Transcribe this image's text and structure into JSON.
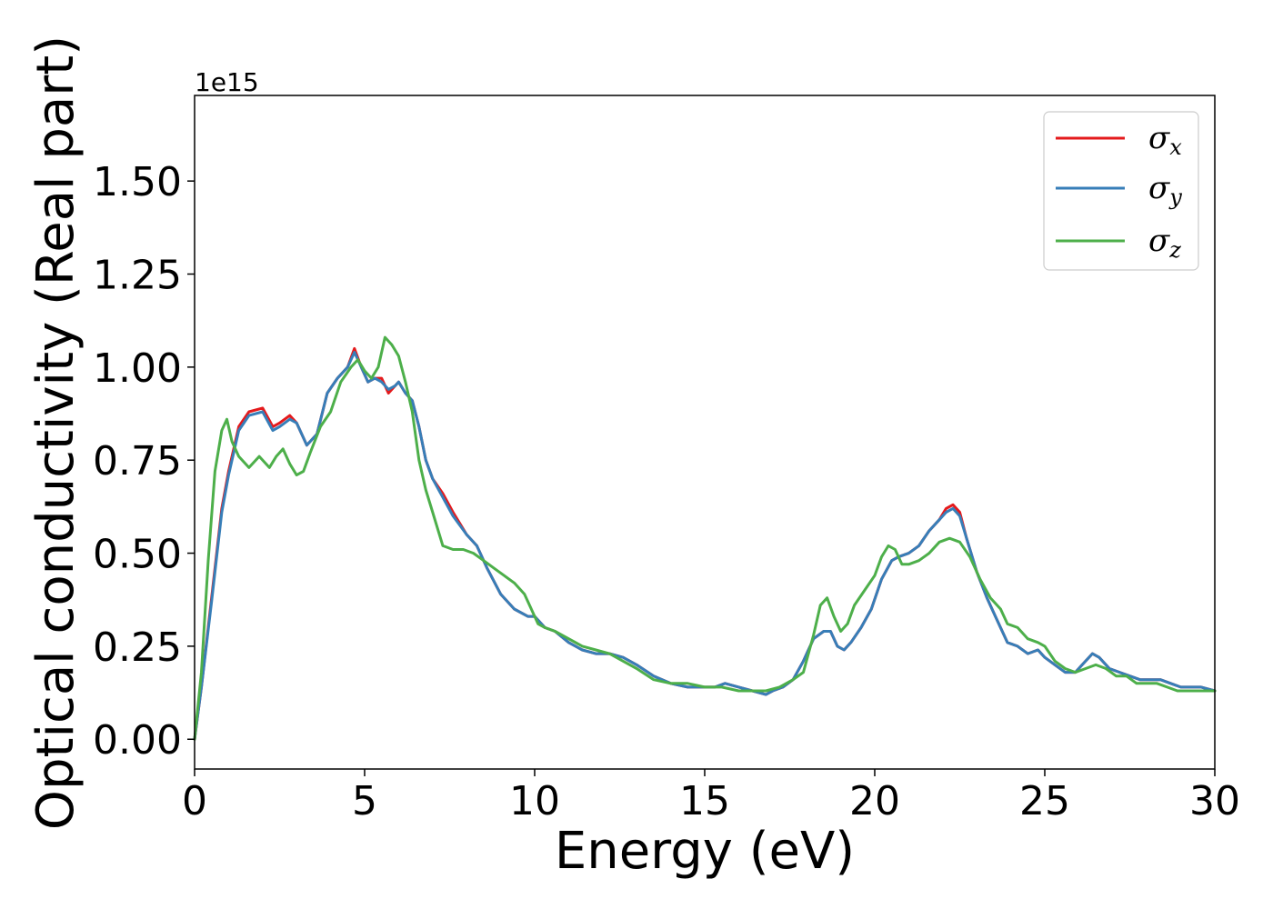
{
  "chart_data": {
    "type": "line",
    "xlabel": "Energy (eV)",
    "ylabel": "Optical conductivity (Real part)",
    "y_offset_label": "1e15",
    "xlim": [
      0,
      30
    ],
    "ylim": [
      -0.08,
      1.73
    ],
    "x_ticks": [
      0,
      5,
      10,
      15,
      20,
      25,
      30
    ],
    "x_tick_labels": [
      "0",
      "5",
      "10",
      "15",
      "20",
      "25",
      "30"
    ],
    "y_ticks": [
      0.0,
      0.25,
      0.5,
      0.75,
      1.0,
      1.25,
      1.5
    ],
    "y_tick_labels": [
      "0.00",
      "0.25",
      "0.50",
      "0.75",
      "1.00",
      "1.25",
      "1.50"
    ],
    "grid": false,
    "legend_position": "top-right",
    "series": [
      {
        "name": "σx",
        "legend_symbol": "σ",
        "legend_subscript": "x",
        "color": "#e41a1c",
        "x": [
          0,
          0.2,
          0.5,
          0.8,
          1.0,
          1.3,
          1.6,
          2.0,
          2.3,
          2.5,
          2.8,
          3.0,
          3.3,
          3.6,
          3.9,
          4.2,
          4.5,
          4.7,
          4.9,
          5.1,
          5.3,
          5.5,
          5.7,
          5.9,
          6.0,
          6.2,
          6.4,
          6.6,
          6.8,
          7.0,
          7.3,
          7.6,
          8.0,
          8.3,
          8.6,
          9.0,
          9.4,
          9.8,
          10.0,
          10.3,
          10.6,
          11.0,
          11.4,
          11.8,
          12.2,
          12.6,
          13.0,
          13.5,
          14.0,
          14.5,
          15.0,
          15.3,
          15.6,
          16.0,
          16.4,
          16.8,
          17.0,
          17.3,
          17.6,
          17.9,
          18.2,
          18.5,
          18.7,
          18.9,
          19.1,
          19.3,
          19.6,
          19.9,
          20.2,
          20.5,
          20.7,
          21.0,
          21.3,
          21.6,
          21.9,
          22.1,
          22.3,
          22.5,
          22.7,
          23.0,
          23.3,
          23.6,
          23.9,
          24.2,
          24.5,
          24.8,
          25.0,
          25.3,
          25.6,
          25.9,
          26.1,
          26.4,
          26.6,
          26.9,
          27.2,
          27.5,
          27.8,
          28.1,
          28.4,
          28.7,
          29.0,
          29.3,
          29.6,
          30.0
        ],
        "values": [
          0.0,
          0.14,
          0.38,
          0.62,
          0.72,
          0.84,
          0.88,
          0.89,
          0.84,
          0.85,
          0.87,
          0.85,
          0.79,
          0.82,
          0.93,
          0.97,
          1.0,
          1.05,
          1.0,
          0.96,
          0.97,
          0.97,
          0.93,
          0.95,
          0.96,
          0.93,
          0.91,
          0.84,
          0.75,
          0.7,
          0.66,
          0.61,
          0.55,
          0.52,
          0.46,
          0.39,
          0.35,
          0.33,
          0.33,
          0.3,
          0.29,
          0.26,
          0.24,
          0.23,
          0.23,
          0.22,
          0.2,
          0.17,
          0.15,
          0.14,
          0.14,
          0.14,
          0.15,
          0.14,
          0.13,
          0.12,
          0.13,
          0.14,
          0.16,
          0.21,
          0.27,
          0.29,
          0.29,
          0.25,
          0.24,
          0.26,
          0.3,
          0.35,
          0.43,
          0.48,
          0.49,
          0.5,
          0.52,
          0.56,
          0.59,
          0.62,
          0.63,
          0.61,
          0.54,
          0.45,
          0.38,
          0.32,
          0.26,
          0.25,
          0.23,
          0.24,
          0.22,
          0.2,
          0.18,
          0.18,
          0.2,
          0.23,
          0.22,
          0.19,
          0.18,
          0.17,
          0.16,
          0.16,
          0.16,
          0.15,
          0.14,
          0.14,
          0.14,
          0.13
        ]
      },
      {
        "name": "σy",
        "legend_symbol": "σ",
        "legend_subscript": "y",
        "color": "#377eb8",
        "x": [
          0,
          0.2,
          0.5,
          0.8,
          1.0,
          1.3,
          1.6,
          2.0,
          2.3,
          2.5,
          2.8,
          3.0,
          3.3,
          3.6,
          3.9,
          4.2,
          4.5,
          4.7,
          4.9,
          5.1,
          5.3,
          5.5,
          5.7,
          5.9,
          6.0,
          6.2,
          6.4,
          6.6,
          6.8,
          7.0,
          7.3,
          7.6,
          8.0,
          8.3,
          8.6,
          9.0,
          9.4,
          9.8,
          10.0,
          10.3,
          10.6,
          11.0,
          11.4,
          11.8,
          12.2,
          12.6,
          13.0,
          13.5,
          14.0,
          14.5,
          15.0,
          15.3,
          15.6,
          16.0,
          16.4,
          16.8,
          17.0,
          17.3,
          17.6,
          17.9,
          18.2,
          18.5,
          18.7,
          18.9,
          19.1,
          19.3,
          19.6,
          19.9,
          20.2,
          20.5,
          20.7,
          21.0,
          21.3,
          21.6,
          21.9,
          22.1,
          22.3,
          22.5,
          22.7,
          23.0,
          23.3,
          23.6,
          23.9,
          24.2,
          24.5,
          24.8,
          25.0,
          25.3,
          25.6,
          25.9,
          26.1,
          26.4,
          26.6,
          26.9,
          27.2,
          27.5,
          27.8,
          28.1,
          28.4,
          28.7,
          29.0,
          29.3,
          29.6,
          30.0
        ],
        "values": [
          0.0,
          0.14,
          0.37,
          0.61,
          0.71,
          0.83,
          0.87,
          0.88,
          0.83,
          0.84,
          0.86,
          0.85,
          0.79,
          0.82,
          0.93,
          0.97,
          1.0,
          1.04,
          1.0,
          0.96,
          0.97,
          0.96,
          0.94,
          0.95,
          0.96,
          0.93,
          0.91,
          0.84,
          0.75,
          0.7,
          0.65,
          0.6,
          0.55,
          0.52,
          0.46,
          0.39,
          0.35,
          0.33,
          0.33,
          0.3,
          0.29,
          0.26,
          0.24,
          0.23,
          0.23,
          0.22,
          0.2,
          0.17,
          0.15,
          0.14,
          0.14,
          0.14,
          0.15,
          0.14,
          0.13,
          0.12,
          0.13,
          0.14,
          0.16,
          0.21,
          0.27,
          0.29,
          0.29,
          0.25,
          0.24,
          0.26,
          0.3,
          0.35,
          0.43,
          0.48,
          0.49,
          0.5,
          0.52,
          0.56,
          0.59,
          0.61,
          0.62,
          0.6,
          0.54,
          0.45,
          0.38,
          0.32,
          0.26,
          0.25,
          0.23,
          0.24,
          0.22,
          0.2,
          0.18,
          0.18,
          0.2,
          0.23,
          0.22,
          0.19,
          0.18,
          0.17,
          0.16,
          0.16,
          0.16,
          0.15,
          0.14,
          0.14,
          0.14,
          0.13
        ]
      },
      {
        "name": "σz",
        "legend_symbol": "σ",
        "legend_subscript": "z",
        "color": "#4daf4a",
        "x": [
          0,
          0.2,
          0.4,
          0.6,
          0.8,
          0.95,
          1.1,
          1.3,
          1.6,
          1.9,
          2.2,
          2.4,
          2.6,
          2.8,
          3.0,
          3.2,
          3.4,
          3.7,
          4.0,
          4.3,
          4.6,
          4.8,
          5.0,
          5.2,
          5.4,
          5.6,
          5.8,
          6.0,
          6.2,
          6.4,
          6.6,
          6.8,
          7.0,
          7.3,
          7.6,
          7.9,
          8.2,
          8.5,
          8.8,
          9.1,
          9.4,
          9.7,
          9.9,
          10.1,
          10.3,
          10.6,
          11.0,
          11.4,
          11.8,
          12.2,
          12.6,
          13.0,
          13.5,
          14.0,
          14.5,
          15.0,
          15.5,
          16.0,
          16.4,
          16.8,
          17.2,
          17.6,
          17.9,
          18.2,
          18.4,
          18.6,
          18.8,
          19.0,
          19.2,
          19.4,
          19.7,
          20.0,
          20.2,
          20.4,
          20.6,
          20.8,
          21.0,
          21.3,
          21.6,
          21.9,
          22.2,
          22.5,
          22.8,
          23.1,
          23.4,
          23.7,
          23.9,
          24.2,
          24.5,
          24.8,
          25.0,
          25.3,
          25.6,
          25.9,
          26.2,
          26.5,
          26.8,
          27.1,
          27.4,
          27.7,
          28.0,
          28.3,
          28.6,
          28.9,
          29.2,
          29.6,
          30.0
        ],
        "values": [
          0.0,
          0.18,
          0.48,
          0.72,
          0.83,
          0.86,
          0.8,
          0.76,
          0.73,
          0.76,
          0.73,
          0.76,
          0.78,
          0.74,
          0.71,
          0.72,
          0.77,
          0.84,
          0.88,
          0.96,
          1.0,
          1.02,
          0.99,
          0.97,
          1.0,
          1.08,
          1.06,
          1.03,
          0.96,
          0.88,
          0.75,
          0.67,
          0.61,
          0.52,
          0.51,
          0.51,
          0.5,
          0.48,
          0.46,
          0.44,
          0.42,
          0.39,
          0.35,
          0.31,
          0.3,
          0.29,
          0.27,
          0.25,
          0.24,
          0.23,
          0.21,
          0.19,
          0.16,
          0.15,
          0.15,
          0.14,
          0.14,
          0.13,
          0.13,
          0.13,
          0.14,
          0.16,
          0.18,
          0.28,
          0.36,
          0.38,
          0.33,
          0.29,
          0.31,
          0.36,
          0.4,
          0.44,
          0.49,
          0.52,
          0.51,
          0.47,
          0.47,
          0.48,
          0.5,
          0.53,
          0.54,
          0.53,
          0.49,
          0.43,
          0.38,
          0.35,
          0.31,
          0.3,
          0.27,
          0.26,
          0.25,
          0.21,
          0.19,
          0.18,
          0.19,
          0.2,
          0.19,
          0.17,
          0.17,
          0.15,
          0.15,
          0.15,
          0.14,
          0.13,
          0.13,
          0.13,
          0.13
        ]
      }
    ]
  }
}
